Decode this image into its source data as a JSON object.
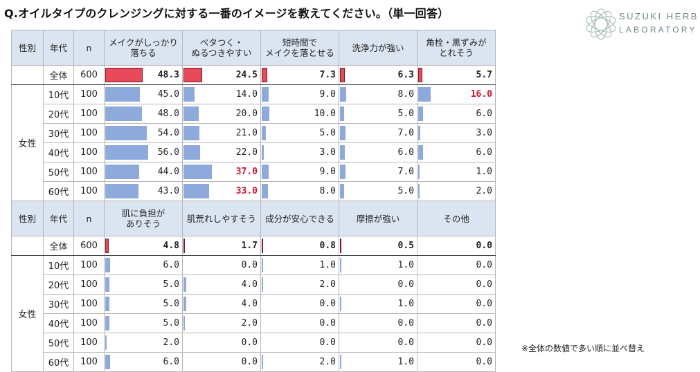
{
  "title": "Q.オイルタイプのクレンジングに対する一番のイメージを教えてください。（単一回答）",
  "logo": {
    "line1": "SUZUKI HERB",
    "line2": "LABORATORY"
  },
  "note": "※全体の数値で多い順に並べ替え",
  "colors": {
    "total_bar": "#e8495b",
    "age_bar": "#8ea9db",
    "header_bg": "#dbe4f1",
    "highlight": "#d6102e"
  },
  "chart_data": {
    "type": "table",
    "gender_label": "女性",
    "row_labels": [
      "全体",
      "10代",
      "20代",
      "30代",
      "40代",
      "50代",
      "60代"
    ],
    "n": [
      "600",
      "100",
      "100",
      "100",
      "100",
      "100",
      "100"
    ],
    "blocks": [
      {
        "headers": {
          "gender": "性別",
          "age": "年代",
          "n": "n"
        },
        "columns": [
          {
            "label": "メイクがしっかり\n落ちる",
            "values": [
              48.3,
              45.0,
              48.0,
              54.0,
              56.0,
              44.0,
              43.0
            ],
            "highlight": []
          },
          {
            "label": "ベタつく・\nぬるつきやすい",
            "values": [
              24.5,
              14.0,
              20.0,
              21.0,
              22.0,
              37.0,
              33.0
            ],
            "highlight": [
              5,
              6
            ]
          },
          {
            "label": "短時間で\nメイクを落とせる",
            "values": [
              7.3,
              9.0,
              10.0,
              5.0,
              3.0,
              9.0,
              8.0
            ],
            "highlight": []
          },
          {
            "label": "洗浄力が強い",
            "values": [
              6.3,
              8.0,
              5.0,
              7.0,
              6.0,
              7.0,
              5.0
            ],
            "highlight": []
          },
          {
            "label": "角栓・黒ずみが\nとれそう",
            "values": [
              5.7,
              16.0,
              6.0,
              3.0,
              6.0,
              1.0,
              2.0
            ],
            "highlight": [
              1
            ]
          }
        ]
      },
      {
        "headers": {
          "gender": "性別",
          "age": "年代",
          "n": "n"
        },
        "columns": [
          {
            "label": "肌に負担が\nありそう",
            "values": [
              4.8,
              6.0,
              5.0,
              5.0,
              5.0,
              2.0,
              6.0
            ],
            "highlight": []
          },
          {
            "label": "肌荒れしやすそう",
            "values": [
              1.7,
              0.0,
              4.0,
              4.0,
              2.0,
              0.0,
              0.0
            ],
            "highlight": []
          },
          {
            "label": "成分が安心できる",
            "values": [
              0.8,
              1.0,
              2.0,
              0.0,
              0.0,
              0.0,
              2.0
            ],
            "highlight": []
          },
          {
            "label": "摩擦が強い",
            "values": [
              0.5,
              1.0,
              0.0,
              1.0,
              0.0,
              0.0,
              1.0
            ],
            "highlight": []
          },
          {
            "label": "その他",
            "values": [
              0.0,
              0.0,
              0.0,
              0.0,
              0.0,
              0.0,
              0.0
            ],
            "highlight": []
          }
        ]
      }
    ]
  }
}
